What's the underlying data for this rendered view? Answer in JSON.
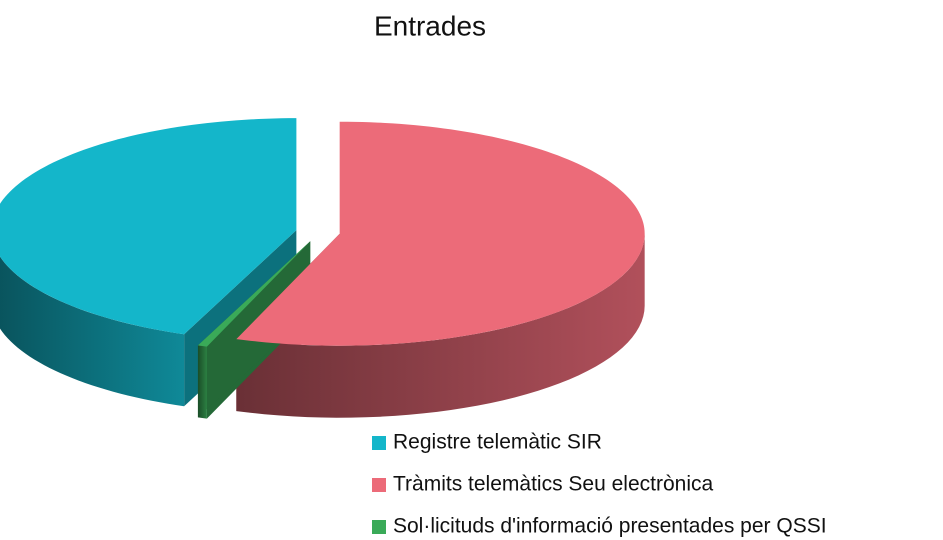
{
  "chart_data": {
    "type": "pie",
    "title": "Entrades",
    "categories": [
      "Registre telemàtic SIR",
      "Tràmits telemàtics Seu electrònica",
      "Sol·licituds d'informació presentades per QSSI"
    ],
    "values": [
      44,
      55.5,
      0.5
    ],
    "colors": [
      "#14b6ca",
      "#ec6b79",
      "#3aaa58"
    ],
    "legend": "bottom-right"
  }
}
